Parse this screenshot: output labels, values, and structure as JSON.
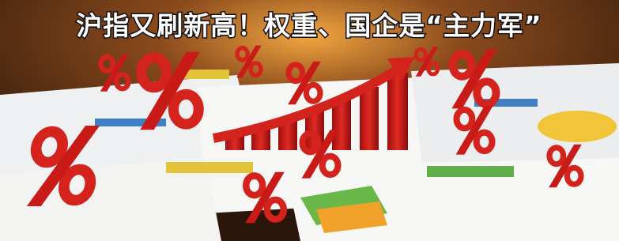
{
  "title": "沪指又刷新高！权重、国企是“主力军”"
}
